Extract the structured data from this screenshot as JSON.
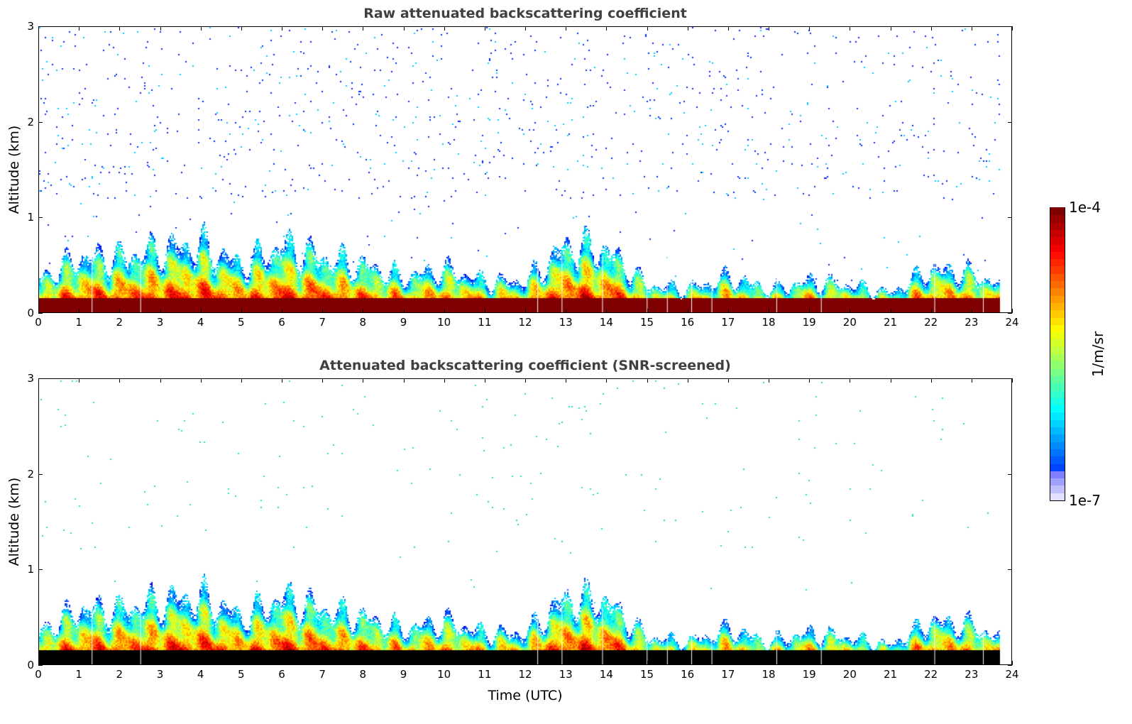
{
  "chart_data": [
    {
      "type": "heatmap",
      "title": "Raw attenuated backscattering coefficient",
      "xlabel": "",
      "ylabel": "Altitude (km)",
      "xlim": [
        0,
        24
      ],
      "ylim": [
        0,
        3
      ],
      "xticks": [
        "0",
        "1",
        "2",
        "3",
        "4",
        "5",
        "6",
        "7",
        "8",
        "9",
        "10",
        "11",
        "12",
        "13",
        "14",
        "15",
        "16",
        "17",
        "18",
        "19",
        "20",
        "21",
        "22",
        "23",
        "24"
      ],
      "yticks": [
        "0",
        "1",
        "2",
        "3"
      ],
      "data_end_hour": 23.7,
      "cloud_top_km": {
        "x": [
          0,
          1,
          2,
          3,
          4,
          5,
          6,
          7,
          8,
          9,
          10,
          11,
          12,
          13,
          14,
          15,
          16,
          17,
          18,
          19,
          20,
          21,
          22,
          23,
          23.7
        ],
        "y": [
          0.43,
          0.7,
          0.7,
          0.8,
          0.85,
          0.6,
          0.85,
          0.7,
          0.6,
          0.45,
          0.55,
          0.4,
          0.4,
          0.85,
          0.8,
          0.35,
          0.3,
          0.45,
          0.3,
          0.4,
          0.35,
          0.25,
          0.55,
          0.5,
          0.35
        ]
      },
      "surface_layer": "saturated"
    },
    {
      "type": "heatmap",
      "title": "Attenuated backscattering coefficient (SNR-screened)",
      "xlabel": "Time (UTC)",
      "ylabel": "Altitude (km)",
      "xlim": [
        0,
        24
      ],
      "ylim": [
        0,
        3
      ],
      "xticks": [
        "0",
        "1",
        "2",
        "3",
        "4",
        "5",
        "6",
        "7",
        "8",
        "9",
        "10",
        "11",
        "12",
        "13",
        "14",
        "15",
        "16",
        "17",
        "18",
        "19",
        "20",
        "21",
        "22",
        "23",
        "24"
      ],
      "yticks": [
        "0",
        "1",
        "2",
        "3"
      ],
      "data_end_hour": 23.7,
      "cloud_top_km": {
        "x": [
          0,
          1,
          2,
          3,
          4,
          5,
          6,
          7,
          8,
          9,
          10,
          11,
          12,
          13,
          14,
          15,
          16,
          17,
          18,
          19,
          20,
          21,
          22,
          23,
          23.7
        ],
        "y": [
          0.43,
          0.7,
          0.7,
          0.8,
          0.85,
          0.6,
          0.85,
          0.7,
          0.6,
          0.45,
          0.55,
          0.4,
          0.4,
          0.85,
          0.8,
          0.35,
          0.3,
          0.45,
          0.3,
          0.4,
          0.35,
          0.25,
          0.55,
          0.5,
          0.35
        ]
      },
      "surface_layer": "masked"
    }
  ],
  "colorbar": {
    "max_label": "1e-4",
    "min_label": "1e-7",
    "unit": "1/m/sr",
    "scale": "log",
    "colormap": "jet"
  }
}
